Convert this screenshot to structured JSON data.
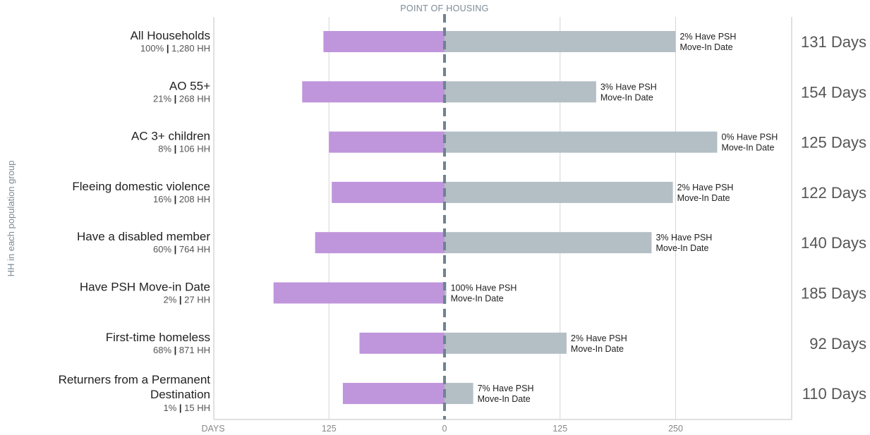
{
  "chart_data": {
    "type": "bar",
    "orientation": "horizontal-diverging",
    "center_label": "POINT OF HOUSING",
    "ylabel": "HH in each population group",
    "xlabel": "DAYS",
    "x_ticks": [
      {
        "label": "125",
        "value": -125
      },
      {
        "label": "0",
        "value": 0
      },
      {
        "label": "125",
        "value": 125
      },
      {
        "label": "250",
        "value": 250
      }
    ],
    "colors": {
      "left": "#bf95dc",
      "right": "#b3bec5",
      "center_line": "#6f8393",
      "grid": "#d6d6d6"
    },
    "groups": [
      {
        "name": "All Households",
        "pct": "100%",
        "hh": "1,280 HH",
        "left_days": 131,
        "right_days": 250,
        "psh_label": "2% Have PSH",
        "psh_label2": "Move-In Date",
        "total": "131 Days"
      },
      {
        "name": "AO 55+",
        "pct": "21%",
        "hh": "268 HH",
        "left_days": 154,
        "right_days": 164,
        "psh_label": "3% Have PSH",
        "psh_label2": "Move-In Date",
        "total": "154 Days"
      },
      {
        "name": "AC 3+ children",
        "pct": "8%",
        "hh": "106 HH",
        "left_days": 125,
        "right_days": 295,
        "psh_label": "0% Have PSH",
        "psh_label2": "Move-In Date",
        "total": "125 Days"
      },
      {
        "name": "Fleeing domestic violence",
        "pct": "16%",
        "hh": "208 HH",
        "left_days": 122,
        "right_days": 247,
        "psh_label": "2% Have PSH",
        "psh_label2": "Move-In Date",
        "total": "122 Days"
      },
      {
        "name": "Have a disabled member",
        "pct": "60%",
        "hh": "764 HH",
        "left_days": 140,
        "right_days": 224,
        "psh_label": "3% Have PSH",
        "psh_label2": "Move-In Date",
        "total": "140 Days"
      },
      {
        "name": "Have PSH Move-in Date",
        "pct": "2%",
        "hh": "27 HH",
        "left_days": 185,
        "right_days": 2,
        "psh_label": "100% Have PSH",
        "psh_label2": "Move-In Date",
        "total": "185 Days"
      },
      {
        "name": "First-time homeless",
        "pct": "68%",
        "hh": "871 HH",
        "left_days": 92,
        "right_days": 132,
        "psh_label": "2% Have PSH",
        "psh_label2": "Move-In Date",
        "total": "92 Days"
      },
      {
        "name": "Returners from a Permanent Destination",
        "name_lines": [
          "Returners from a Permanent",
          "Destination"
        ],
        "pct": "1%",
        "hh": "15 HH",
        "left_days": 110,
        "right_days": 31,
        "psh_label": "7% Have PSH",
        "psh_label2": "Move-In Date",
        "total": "110 Days"
      }
    ]
  }
}
